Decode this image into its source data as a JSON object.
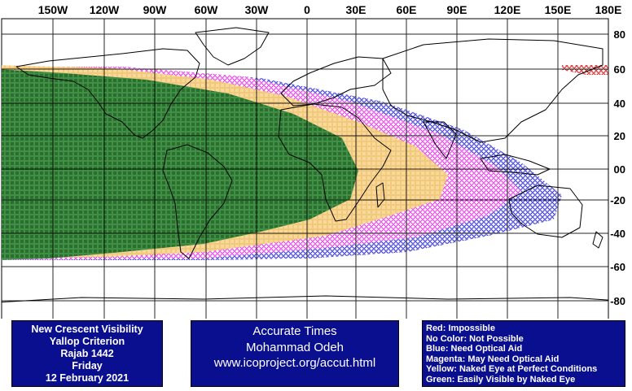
{
  "map": {
    "top_lon_labels": [
      "150W",
      "120W",
      "90W",
      "60W",
      "30W",
      "0",
      "30E",
      "60E",
      "90E",
      "120E",
      "150E",
      "180E"
    ],
    "lat_labels": [
      "80",
      "60",
      "40",
      "20",
      "00",
      "-20",
      "-40",
      "-60",
      "-80"
    ],
    "colors": {
      "red": "#cc0000",
      "blue": "#1a1ad0",
      "magenta": "#e01ee0",
      "yellow": "#f0c46a",
      "green": "#2e7d32",
      "land_outline": "#000000",
      "grid": "#000000"
    }
  },
  "info_panel": {
    "line1": "New Crescent Visibility",
    "line2": "Yallop Criterion",
    "line3": "Rajab 1442",
    "line4": "Friday",
    "line5": "12 February 2021"
  },
  "credit_panel": {
    "line1": "Accurate Times",
    "line2": "Mohammad Odeh",
    "line3": "www.icoproject.org/accut.html"
  },
  "legend": {
    "red": "Red: Impossible",
    "none": "No Color: Not Possible",
    "blue": "Blue: Need Optical Aid",
    "magenta": "Magenta: May Need Optical Aid",
    "yellow": "Yellow: Naked Eye at Perfect Conditions",
    "green": "Green: Easily Visible by Naked Eye"
  }
}
